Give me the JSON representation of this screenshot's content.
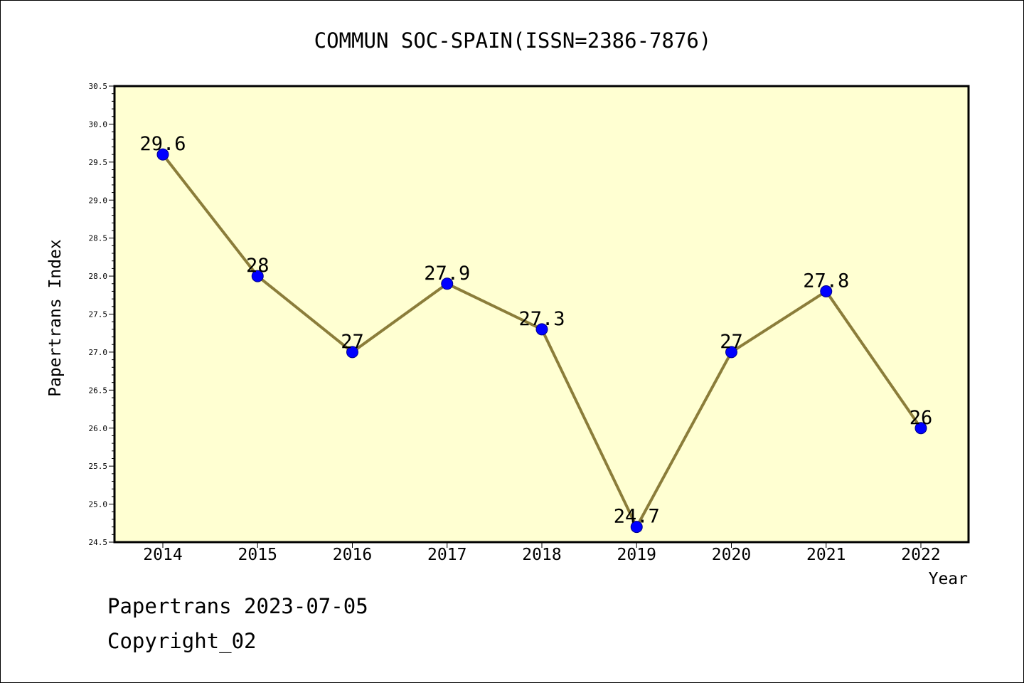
{
  "chart_data": {
    "type": "line",
    "title": "COMMUN SOC-SPAIN(ISSN=2386-7876)",
    "xlabel": "Year",
    "ylabel": "Papertrans Index",
    "categories": [
      "2014",
      "2015",
      "2016",
      "2017",
      "2018",
      "2019",
      "2020",
      "2021",
      "2022"
    ],
    "values": [
      29.6,
      28,
      27,
      27.9,
      27.3,
      24.7,
      27,
      27.8,
      26
    ],
    "data_labels": [
      "29.6",
      "28",
      "27",
      "27.9",
      "27.3",
      "24.7",
      "27",
      "27.8",
      "26"
    ],
    "ylim": [
      24.5,
      30.5
    ],
    "yticks": [
      "24.5",
      "25.0",
      "25.5",
      "26.0",
      "26.5",
      "27.0",
      "27.5",
      "28.0",
      "28.5",
      "29.0",
      "29.5",
      "30.0",
      "30.5"
    ],
    "grid": false,
    "colors": {
      "plot_background": "#ffffd2",
      "line": "#8b7d3a",
      "marker": "#0000ff"
    }
  },
  "footer": {
    "date_text": "Papertrans 2023-07-05",
    "copyright_text": "Copyright_02"
  }
}
